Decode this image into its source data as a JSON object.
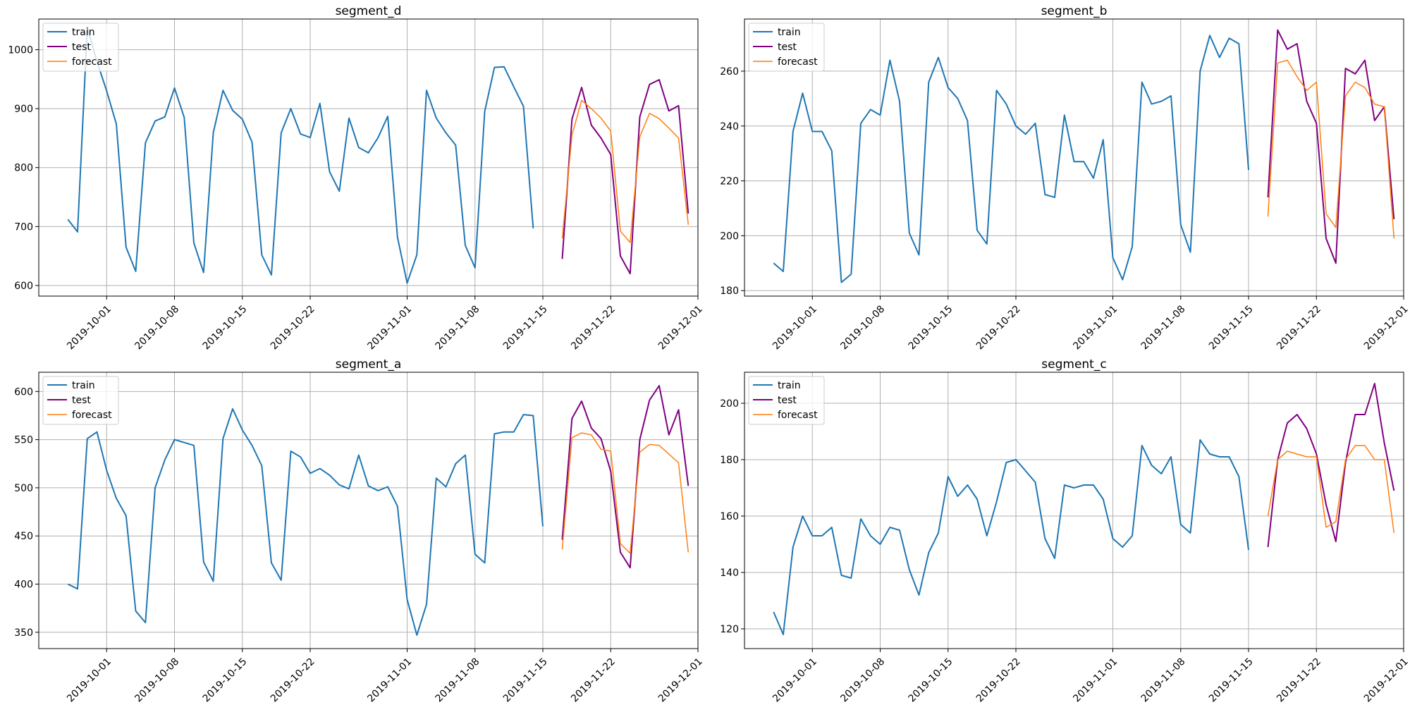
{
  "chart_data": [
    {
      "type": "line",
      "title": "segment_d",
      "ylim": [
        582,
        1052
      ],
      "yticks": [
        600,
        700,
        800,
        900,
        1000
      ],
      "xlim": [
        "2019-09-24",
        "2019-12-01"
      ],
      "xticks": [
        "2019-10-01",
        "2019-10-08",
        "2019-10-15",
        "2019-10-22",
        "2019-11-01",
        "2019-11-08",
        "2019-11-15",
        "2019-11-22",
        "2019-12-01"
      ],
      "legend": [
        "train",
        "test",
        "forecast"
      ],
      "series": [
        {
          "name": "train",
          "start": "2019-09-27",
          "values": [
            712,
            691,
            1038,
            980,
            930,
            874,
            665,
            624,
            842,
            879,
            886,
            935,
            885,
            672,
            622,
            859,
            931,
            897,
            882,
            843,
            652,
            618,
            859,
            900,
            857,
            851,
            909,
            793,
            760,
            884,
            834,
            825,
            851,
            887,
            682,
            604,
            652,
            931,
            884,
            859,
            838,
            668,
            630,
            895,
            970,
            971,
            937,
            904,
            697
          ]
        },
        {
          "name": "test",
          "start": "2019-11-17",
          "values": [
            645,
            882,
            936,
            872,
            850,
            822,
            650,
            620,
            886,
            941,
            949,
            896,
            905,
            722
          ]
        },
        {
          "name": "forecast",
          "start": "2019-11-17",
          "values": [
            680,
            855,
            914,
            900,
            884,
            862,
            692,
            673,
            852,
            892,
            883,
            867,
            850,
            703
          ]
        }
      ]
    },
    {
      "type": "line",
      "title": "segment_b",
      "ylim": [
        178,
        279
      ],
      "yticks": [
        180,
        200,
        220,
        240,
        260
      ],
      "xlim": [
        "2019-09-24",
        "2019-12-01"
      ],
      "xticks": [
        "2019-10-01",
        "2019-10-08",
        "2019-10-15",
        "2019-10-22",
        "2019-11-01",
        "2019-11-08",
        "2019-11-15",
        "2019-11-22",
        "2019-12-01"
      ],
      "legend": [
        "train",
        "test",
        "forecast"
      ],
      "series": [
        {
          "name": "train",
          "start": "2019-09-27",
          "values": [
            190,
            187,
            238,
            252,
            238,
            238,
            231,
            183,
            186,
            241,
            246,
            244,
            264,
            249,
            201,
            193,
            256,
            265,
            254,
            250,
            242,
            202,
            197,
            253,
            248,
            240,
            237,
            241,
            215,
            214,
            244,
            227,
            227,
            221,
            235,
            192,
            184,
            196,
            256,
            248,
            249,
            251,
            204,
            194,
            260,
            273,
            265,
            272,
            270,
            224
          ]
        },
        {
          "name": "test",
          "start": "2019-11-17",
          "values": [
            214,
            275,
            268,
            270,
            249,
            241,
            199,
            190,
            261,
            259,
            264,
            242,
            247,
            206
          ]
        },
        {
          "name": "forecast",
          "start": "2019-11-17",
          "values": [
            207,
            263,
            264,
            258,
            253,
            256,
            208,
            203,
            251,
            256,
            254,
            248,
            247,
            199
          ]
        }
      ]
    },
    {
      "type": "line",
      "title": "segment_a",
      "ylim": [
        333,
        620
      ],
      "yticks": [
        350,
        400,
        450,
        500,
        550,
        600
      ],
      "xlim": [
        "2019-09-24",
        "2019-12-01"
      ],
      "xticks": [
        "2019-10-01",
        "2019-10-08",
        "2019-10-15",
        "2019-10-22",
        "2019-11-01",
        "2019-11-08",
        "2019-11-15",
        "2019-11-22",
        "2019-12-01"
      ],
      "legend": [
        "train",
        "test",
        "forecast"
      ],
      "series": [
        {
          "name": "train",
          "start": "2019-09-27",
          "values": [
            400,
            395,
            551,
            558,
            518,
            489,
            471,
            372,
            360,
            500,
            529,
            550,
            547,
            544,
            423,
            403,
            551,
            582,
            560,
            544,
            523,
            422,
            404,
            538,
            532,
            515,
            520,
            513,
            503,
            499,
            534,
            502,
            497,
            501,
            481,
            384,
            347,
            379,
            510,
            501,
            525,
            534,
            431,
            422,
            556,
            558,
            558,
            576,
            575,
            460
          ]
        },
        {
          "name": "test",
          "start": "2019-11-17",
          "values": [
            446,
            572,
            590,
            562,
            551,
            517,
            433,
            417,
            550,
            591,
            606,
            555,
            581,
            502
          ]
        },
        {
          "name": "forecast",
          "start": "2019-11-17",
          "values": [
            436,
            552,
            557,
            555,
            540,
            538,
            442,
            432,
            537,
            545,
            544,
            535,
            526,
            433
          ]
        }
      ]
    },
    {
      "type": "line",
      "title": "segment_c",
      "ylim": [
        113,
        211
      ],
      "yticks": [
        120,
        140,
        160,
        180,
        200
      ],
      "xlim": [
        "2019-09-24",
        "2019-12-01"
      ],
      "xticks": [
        "2019-10-01",
        "2019-10-08",
        "2019-10-15",
        "2019-10-22",
        "2019-11-01",
        "2019-11-08",
        "2019-11-15",
        "2019-11-22",
        "2019-12-01"
      ],
      "legend": [
        "train",
        "test",
        "forecast"
      ],
      "series": [
        {
          "name": "train",
          "start": "2019-09-27",
          "values": [
            126,
            118,
            149,
            160,
            153,
            153,
            156,
            139,
            138,
            159,
            153,
            150,
            156,
            155,
            141,
            132,
            147,
            154,
            174,
            167,
            171,
            166,
            153,
            165,
            179,
            180,
            176,
            172,
            152,
            145,
            171,
            170,
            171,
            171,
            166,
            152,
            149,
            153,
            185,
            178,
            175,
            181,
            157,
            154,
            187,
            182,
            181,
            181,
            174,
            148
          ]
        },
        {
          "name": "test",
          "start": "2019-11-17",
          "values": [
            149,
            180,
            193,
            196,
            191,
            182,
            164,
            151,
            179,
            196,
            196,
            207,
            186,
            169
          ]
        },
        {
          "name": "forecast",
          "start": "2019-11-17",
          "values": [
            160,
            180,
            183,
            182,
            181,
            181,
            156,
            158,
            180,
            185,
            185,
            180,
            180,
            154
          ]
        }
      ]
    }
  ],
  "colors": {
    "train": "#1f77b4",
    "test": "#800080",
    "forecast": "#ff7f0e"
  }
}
